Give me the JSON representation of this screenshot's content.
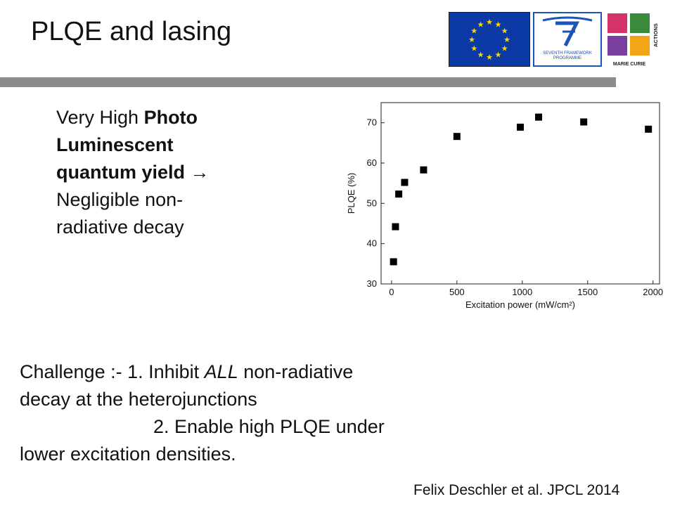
{
  "slide": {
    "title": "PLQE and lasing",
    "side_text": {
      "line1_plain": "Very High ",
      "line1_bold": "Photo",
      "line2_bold": "Luminescent",
      "line3_bold": "quantum yield",
      "line3_arrow": " →",
      "line4": "Negligible non-",
      "line5": "radiative decay"
    },
    "challenge": {
      "line1_pre": "Challenge :- 1. Inhibit ",
      "line1_italic": "ALL",
      "line1_post": " non-radiative",
      "line2": "decay at the heterojunctions",
      "line3": "2. Enable high PLQE under",
      "line4": "lower excitation densities."
    },
    "citation": "Felix Deschler et al. JPCL 2014",
    "logos": {
      "fp7_text_1": "SEVENTH FRAMEWORK",
      "fp7_text_2": "PROGRAMME",
      "mc_text": "MARIE CURIE",
      "mc_vertical": "ACTIONS"
    }
  },
  "colors": {
    "divider": "#8c8c8c",
    "eu_blue": "#0b3aa6",
    "eu_star": "#ffd700",
    "fp7_blue": "#1c55b8",
    "mc_tiles": [
      "#d6336c",
      "#f2a516",
      "#3a8a3c",
      "#7a3f9e"
    ],
    "marker": "#000000"
  },
  "chart_data": {
    "type": "scatter",
    "xlabel": "Excitation power (mW/cm²)",
    "ylabel": "PLQE (%)",
    "xlim": [
      -80,
      2050
    ],
    "ylim": [
      30,
      75
    ],
    "xticks": [
      0,
      500,
      1000,
      1500,
      2000
    ],
    "yticks": [
      30,
      40,
      50,
      60,
      70
    ],
    "x": [
      15,
      30,
      55,
      100,
      245,
      500,
      985,
      1125,
      1470,
      1965
    ],
    "y": [
      35.5,
      44.2,
      52.3,
      55.2,
      58.3,
      66.6,
      68.9,
      71.4,
      70.2,
      68.4
    ],
    "marker": "square",
    "grid": false
  }
}
